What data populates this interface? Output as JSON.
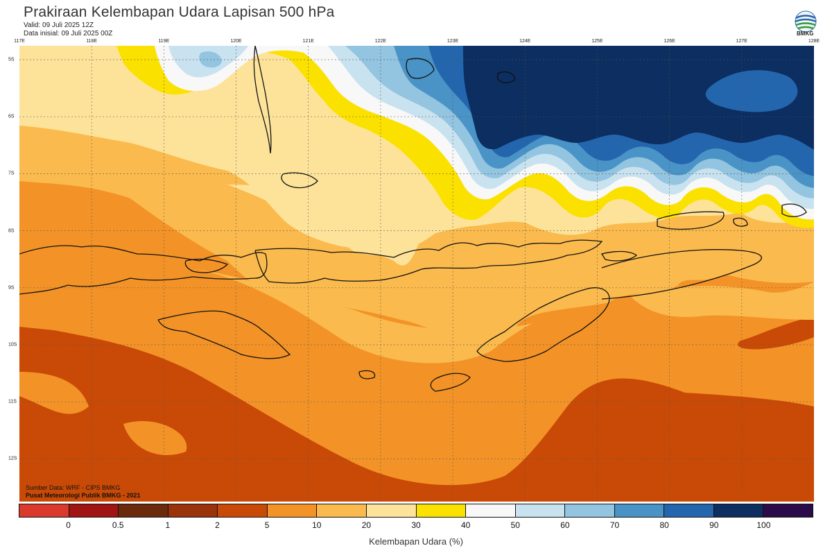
{
  "title": "Prakiraan Kelembapan Udara Lapisan 500 hPa",
  "valid": "Valid: 09 Juli 2025 12Z",
  "init": "Data inisial: 09 Juli 2025 00Z",
  "logo_text": "BMKG",
  "lon_labels": [
    "117E",
    "118E",
    "119E",
    "120E",
    "121E",
    "122E",
    "123E",
    "124E",
    "125E",
    "126E",
    "127E",
    "128E"
  ],
  "lat_labels": [
    "5S",
    "6S",
    "7S",
    "8S",
    "9S",
    "10S",
    "11S",
    "12S"
  ],
  "credit_source": "Sumber Data: WRF - CIPS BMKG",
  "credit_org": "Pusat Meteorologi Publik BMKG - 2021",
  "colorbar": {
    "title": "Kelembapan Udara (%)",
    "ticks": [
      "0",
      "0.5",
      "1",
      "2",
      "5",
      "10",
      "20",
      "30",
      "40",
      "50",
      "60",
      "70",
      "80",
      "90",
      "100"
    ],
    "colors": [
      "#d93a2b",
      "#a01414",
      "#6b2a0c",
      "#9a3309",
      "#c94a06",
      "#f39327",
      "#fbba4d",
      "#fde39a",
      "#fbe100",
      "#f8f8f8",
      "#c9e2ef",
      "#93c4e0",
      "#4a93c6",
      "#2466ad",
      "#0c2e60",
      "#2b0b4a"
    ]
  },
  "map_colors": {
    "dark_orange": "#c94a06",
    "orange": "#f39327",
    "light_orange": "#fbba4d",
    "pale_yellow": "#fde39a",
    "yellow": "#fbe100",
    "white": "#f8f8f8",
    "pale_blue": "#c9e2ef",
    "light_blue": "#93c4e0",
    "mid_blue": "#4a93c6",
    "blue": "#2466ad",
    "navy": "#0c2e60"
  }
}
